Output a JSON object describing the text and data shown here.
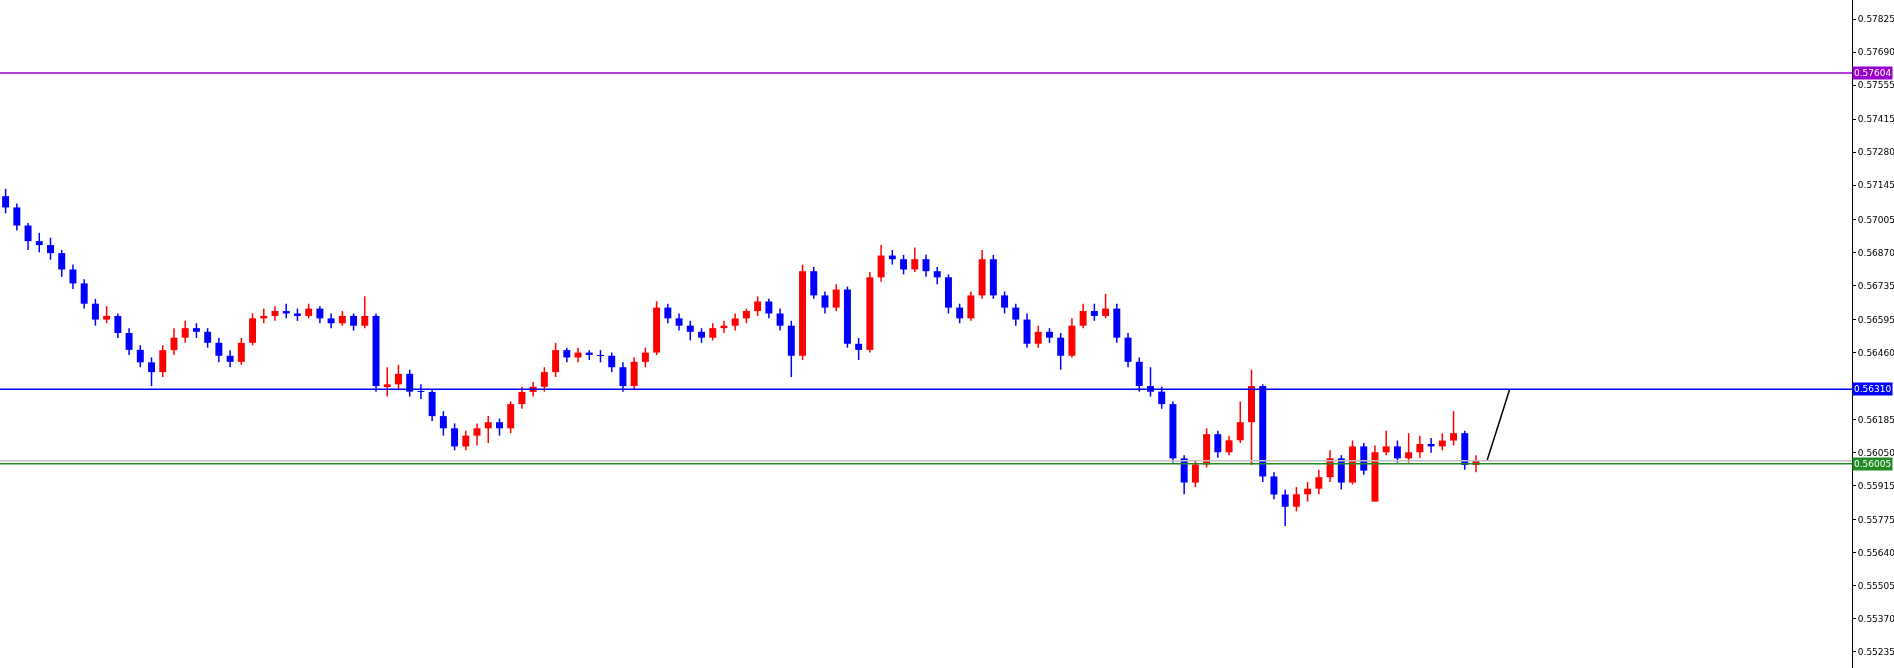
{
  "chart_data": {
    "type": "candlestick",
    "categories": [
      null,
      null,
      null,
      null,
      null,
      null,
      null,
      null,
      null,
      null,
      null,
      null,
      null,
      null,
      null,
      null,
      null,
      null,
      null,
      null,
      null,
      null,
      null,
      null,
      null,
      null,
      null,
      null,
      null,
      null,
      null,
      null,
      null,
      null,
      null,
      null,
      null,
      null,
      null,
      null,
      null,
      null,
      null,
      null,
      null,
      null,
      null,
      null,
      null,
      null,
      null,
      null,
      null,
      null,
      null,
      null,
      null,
      null,
      null,
      null,
      null,
      null,
      null,
      null,
      null,
      null,
      null,
      null,
      null,
      null,
      null,
      null,
      null,
      null,
      null,
      null,
      null,
      null,
      null,
      null,
      null,
      null,
      null,
      null,
      null,
      null,
      null,
      null,
      null,
      null,
      null,
      null,
      null,
      null,
      null,
      null,
      null,
      null,
      null,
      null,
      null,
      null,
      null,
      null,
      null,
      null,
      null,
      null,
      null,
      null,
      null,
      null,
      null,
      null,
      null,
      null,
      null,
      null,
      null,
      null,
      null,
      null,
      null,
      null,
      null,
      null,
      null,
      null,
      null,
      null,
      null,
      null,
      null,
      null,
      null,
      null,
      null,
      null,
      null,
      null,
      null,
      null,
      null,
      null,
      null,
      null,
      null,
      null,
      null,
      null,
      null,
      null,
      null,
      null,
      null,
      null,
      null,
      null,
      null,
      null,
      null,
      null,
      null,
      null,
      null
    ],
    "colors": [
      "#0000ff",
      "#0000ff",
      "#0000ff",
      "#0000ff",
      "#0000ff",
      "#0000ff",
      "#0000ff",
      "#0000ff",
      "#0000ff",
      "#ff0000",
      "#0000ff",
      "#0000ff",
      "#0000ff",
      "#0000ff",
      "#ff0000",
      "#ff0000",
      "#ff0000",
      "#0000ff",
      "#0000ff",
      "#0000ff",
      "#0000ff",
      "#ff0000",
      "#ff0000",
      "#ff0000",
      "#ff0000",
      "#0000ff",
      "#0000ff",
      "#ff0000",
      "#0000ff",
      "#0000ff",
      "#ff0000",
      "#0000ff",
      "#ff0000",
      "#0000ff",
      "#ff0000",
      "#ff0000",
      "#0000ff",
      "#0000ff",
      "#0000ff",
      "#0000ff",
      "#0000ff",
      "#ff0000",
      "#ff0000",
      "#ff0000",
      "#0000ff",
      "#ff0000",
      "#ff0000",
      "#ff0000",
      "#ff0000",
      "#ff0000",
      "#0000ff",
      "#ff0000",
      "#0000ff",
      "#0000ff",
      "#0000ff",
      "#0000ff",
      "#ff0000",
      "#ff0000",
      "#ff0000",
      "#0000ff",
      "#0000ff",
      "#0000ff",
      "#0000ff",
      "#ff0000",
      "#ff0000",
      "#ff0000",
      "#ff0000",
      "#ff0000",
      "#0000ff",
      "#0000ff",
      "#0000ff",
      "#ff0000",
      "#0000ff",
      "#0000ff",
      "#ff0000",
      "#0000ff",
      "#0000ff",
      "#ff0000",
      "#ff0000",
      "#0000ff",
      "#0000ff",
      "#ff0000",
      "#0000ff",
      "#0000ff",
      "#0000ff",
      "#0000ff",
      "#ff0000",
      "#ff0000",
      "#0000ff",
      "#0000ff",
      "#0000ff",
      "#0000ff",
      "#ff0000",
      "#0000ff",
      "#0000ff",
      "#ff0000",
      "#ff0000",
      "#0000ff",
      "#ff0000",
      "#0000ff",
      "#0000ff",
      "#0000ff",
      "#0000ff",
      "#0000ff",
      "#0000ff",
      "#0000ff",
      "#ff0000",
      "#ff0000",
      "#0000ff",
      "#ff0000",
      "#ff0000",
      "#ff0000",
      "#0000ff",
      "#0000ff",
      "#0000ff",
      "#ff0000",
      "#ff0000",
      "#ff0000",
      "#ff0000",
      "#0000ff",
      "#ff0000",
      "#0000ff",
      "#ff0000",
      "#ff0000",
      "#0000ff",
      "#ff0000",
      "#ff0000",
      "#0000ff",
      "#ff0000",
      "#ff0000",
      "#0000ff",
      "#ff0000",
      null,
      null,
      null,
      null,
      null,
      null,
      null,
      null,
      null,
      null,
      null,
      null,
      null,
      null,
      null,
      null,
      null,
      null,
      null,
      null,
      null,
      null,
      null,
      null,
      null,
      null,
      null,
      null,
      null,
      null,
      null,
      null,
      null
    ],
    "ohlc": [
      [
        0.571,
        0.5713,
        0.5703,
        0.57054
      ],
      [
        0.57054,
        0.5707,
        0.5696,
        0.5698
      ],
      [
        0.5698,
        0.5699,
        0.5688,
        0.56916
      ],
      [
        0.56916,
        0.5695,
        0.5687,
        0.569
      ],
      [
        0.569,
        0.5693,
        0.5684,
        0.56867
      ],
      [
        0.56867,
        0.5688,
        0.5677,
        0.568
      ],
      [
        0.568,
        0.5682,
        0.5672,
        0.56743
      ],
      [
        0.56743,
        0.5676,
        0.5664,
        0.5666
      ],
      [
        0.5666,
        0.5668,
        0.5657,
        0.56595
      ],
      [
        0.56595,
        0.5665,
        0.5658,
        0.5661
      ],
      [
        0.5661,
        0.5662,
        0.5652,
        0.5654
      ],
      [
        0.5654,
        0.5656,
        0.5645,
        0.56471
      ],
      [
        0.56471,
        0.5649,
        0.564,
        0.5642
      ],
      [
        0.5642,
        0.5644,
        0.56323,
        0.5638
      ],
      [
        0.5638,
        0.5649,
        0.5636,
        0.5647
      ],
      [
        0.5647,
        0.5656,
        0.5645,
        0.56521
      ],
      [
        0.56521,
        0.5659,
        0.565,
        0.5656
      ],
      [
        0.5656,
        0.5658,
        0.5652,
        0.56545
      ],
      [
        0.56545,
        0.5656,
        0.5648,
        0.565
      ],
      [
        0.565,
        0.5652,
        0.5642,
        0.56447
      ],
      [
        0.56447,
        0.5647,
        0.564,
        0.56422
      ],
      [
        0.56422,
        0.5652,
        0.5641,
        0.565
      ],
      [
        0.565,
        0.5662,
        0.5649,
        0.566
      ],
      [
        0.566,
        0.5664,
        0.5658,
        0.5661
      ],
      [
        0.5661,
        0.5665,
        0.5659,
        0.5663
      ],
      [
        0.5663,
        0.5666,
        0.566,
        0.5662
      ],
      [
        0.5662,
        0.5664,
        0.5659,
        0.5661
      ],
      [
        0.5661,
        0.5666,
        0.566,
        0.5664
      ],
      [
        0.5664,
        0.5665,
        0.5658,
        0.566
      ],
      [
        0.566,
        0.5662,
        0.5656,
        0.5658
      ],
      [
        0.5658,
        0.5663,
        0.5657,
        0.5661
      ],
      [
        0.5661,
        0.5662,
        0.5655,
        0.5657
      ],
      [
        0.5657,
        0.5669,
        0.5656,
        0.5661
      ],
      [
        0.5661,
        0.5662,
        0.563,
        0.56323
      ],
      [
        0.56323,
        0.564,
        0.5628,
        0.5633
      ],
      [
        0.5633,
        0.5641,
        0.5631,
        0.56373
      ],
      [
        0.56373,
        0.5639,
        0.5628,
        0.563
      ],
      [
        0.563,
        0.5633,
        0.5627,
        0.56299
      ],
      [
        0.56299,
        0.5631,
        0.5618,
        0.562
      ],
      [
        0.562,
        0.5622,
        0.5612,
        0.5615
      ],
      [
        0.5615,
        0.5617,
        0.5606,
        0.56076
      ],
      [
        0.56076,
        0.5614,
        0.5606,
        0.5612
      ],
      [
        0.5612,
        0.5617,
        0.5608,
        0.5615
      ],
      [
        0.5615,
        0.562,
        0.5609,
        0.56175
      ],
      [
        0.56175,
        0.5619,
        0.5612,
        0.5615
      ],
      [
        0.5615,
        0.5626,
        0.5613,
        0.56249
      ],
      [
        0.56249,
        0.5632,
        0.5623,
        0.56299
      ],
      [
        0.56299,
        0.5634,
        0.5628,
        0.5632
      ],
      [
        0.5632,
        0.564,
        0.563,
        0.5638
      ],
      [
        0.5638,
        0.565,
        0.5636,
        0.5647
      ],
      [
        0.5647,
        0.5648,
        0.5642,
        0.5644
      ],
      [
        0.5644,
        0.5648,
        0.5642,
        0.5646
      ],
      [
        0.5646,
        0.5647,
        0.5643,
        0.5645
      ],
      [
        0.5645,
        0.5647,
        0.5642,
        0.56447
      ],
      [
        0.56447,
        0.5646,
        0.5638,
        0.564
      ],
      [
        0.564,
        0.5642,
        0.563,
        0.56323
      ],
      [
        0.56323,
        0.5644,
        0.5631,
        0.56422
      ],
      [
        0.56422,
        0.5648,
        0.564,
        0.5646
      ],
      [
        0.5646,
        0.5667,
        0.5645,
        0.56644
      ],
      [
        0.56644,
        0.5666,
        0.5658,
        0.566
      ],
      [
        0.566,
        0.5662,
        0.5655,
        0.5657
      ],
      [
        0.5657,
        0.5659,
        0.5651,
        0.56545
      ],
      [
        0.56545,
        0.5656,
        0.565,
        0.56521
      ],
      [
        0.56521,
        0.5658,
        0.5651,
        0.5656
      ],
      [
        0.5656,
        0.5659,
        0.5654,
        0.5657
      ],
      [
        0.5657,
        0.5662,
        0.5655,
        0.566
      ],
      [
        0.566,
        0.5664,
        0.5658,
        0.5663
      ],
      [
        0.5663,
        0.5669,
        0.5661,
        0.56669
      ],
      [
        0.56669,
        0.5668,
        0.566,
        0.5662
      ],
      [
        0.5662,
        0.5664,
        0.5655,
        0.5657
      ],
      [
        0.5657,
        0.5659,
        0.5636,
        0.56447
      ],
      [
        0.56447,
        0.5682,
        0.5643,
        0.56793
      ],
      [
        0.56793,
        0.5681,
        0.5668,
        0.56694
      ],
      [
        0.56694,
        0.5671,
        0.5662,
        0.56644
      ],
      [
        0.56644,
        0.5674,
        0.5663,
        0.56718
      ],
      [
        0.56718,
        0.5673,
        0.5648,
        0.56496
      ],
      [
        0.56496,
        0.5652,
        0.5643,
        0.56471
      ],
      [
        0.56471,
        0.5679,
        0.5646,
        0.56768
      ],
      [
        0.56768,
        0.569,
        0.5675,
        0.56857
      ],
      [
        0.56857,
        0.5688,
        0.5682,
        0.56842
      ],
      [
        0.56842,
        0.5686,
        0.5678,
        0.568
      ],
      [
        0.568,
        0.5689,
        0.5679,
        0.56842
      ],
      [
        0.56842,
        0.5686,
        0.5677,
        0.56793
      ],
      [
        0.56793,
        0.5681,
        0.5674,
        0.56768
      ],
      [
        0.56768,
        0.5678,
        0.5662,
        0.56644
      ],
      [
        0.56644,
        0.5666,
        0.5658,
        0.566
      ],
      [
        0.566,
        0.5671,
        0.5659,
        0.56694
      ],
      [
        0.56694,
        0.5688,
        0.5668,
        0.56842
      ],
      [
        0.56842,
        0.5686,
        0.5668,
        0.56694
      ],
      [
        0.56694,
        0.5671,
        0.5662,
        0.56644
      ],
      [
        0.56644,
        0.5666,
        0.5657,
        0.56595
      ],
      [
        0.56595,
        0.5662,
        0.5648,
        0.56496
      ],
      [
        0.56496,
        0.5657,
        0.5648,
        0.56545
      ],
      [
        0.56545,
        0.5656,
        0.565,
        0.56521
      ],
      [
        0.56521,
        0.5654,
        0.5639,
        0.56447
      ],
      [
        0.56447,
        0.566,
        0.5644,
        0.5657
      ],
      [
        0.5657,
        0.5666,
        0.5656,
        0.5663
      ],
      [
        0.5663,
        0.5666,
        0.5659,
        0.5661
      ],
      [
        0.5661,
        0.567,
        0.566,
        0.5664
      ],
      [
        0.5664,
        0.5666,
        0.565,
        0.56521
      ],
      [
        0.56521,
        0.5654,
        0.564,
        0.56422
      ],
      [
        0.56422,
        0.5644,
        0.563,
        0.56323
      ],
      [
        0.56323,
        0.564,
        0.5628,
        0.563
      ],
      [
        0.563,
        0.5632,
        0.5623,
        0.56249
      ],
      [
        0.56249,
        0.5626,
        0.5601,
        0.56027
      ],
      [
        0.56027,
        0.5604,
        0.5588,
        0.55928
      ],
      [
        0.55928,
        0.5602,
        0.5591,
        0.56002
      ],
      [
        0.56002,
        0.5615,
        0.5599,
        0.56126
      ],
      [
        0.56126,
        0.5614,
        0.5603,
        0.56052
      ],
      [
        0.56052,
        0.5612,
        0.5604,
        0.56101
      ],
      [
        0.56101,
        0.5626,
        0.5609,
        0.56175
      ],
      [
        0.56175,
        0.5639,
        0.56,
        0.56323
      ],
      [
        0.56323,
        0.5633,
        0.5593,
        0.55953
      ],
      [
        0.55953,
        0.5597,
        0.5586,
        0.55879
      ],
      [
        0.55879,
        0.559,
        0.5575,
        0.55829
      ],
      [
        0.55829,
        0.5591,
        0.5581,
        0.5588
      ],
      [
        0.5588,
        0.5593,
        0.5585,
        0.55903
      ],
      [
        0.55903,
        0.5598,
        0.5588,
        0.5595
      ],
      [
        0.5595,
        0.5606,
        0.5593,
        0.56027
      ],
      [
        0.56027,
        0.5604,
        0.559,
        0.55928
      ],
      [
        0.55928,
        0.561,
        0.5592,
        0.56076
      ],
      [
        0.56076,
        0.5609,
        0.5596,
        0.55977
      ],
      [
        0.5585,
        0.5608,
        0.5585,
        0.56052
      ],
      [
        0.56052,
        0.5614,
        0.5604,
        0.56076
      ],
      [
        0.56076,
        0.561,
        0.5601,
        0.56027
      ],
      [
        0.56027,
        0.5613,
        0.5601,
        0.56052
      ],
      [
        0.56052,
        0.5612,
        0.5603,
        0.56086
      ],
      [
        0.56086,
        0.5611,
        0.5605,
        0.56076
      ],
      [
        0.56076,
        0.5613,
        0.5606,
        0.561
      ],
      [
        0.561,
        0.5622,
        0.5608,
        0.5613
      ],
      [
        0.5613,
        0.5614,
        0.5598,
        0.56
      ],
      [
        0.56,
        0.5604,
        0.5597,
        0.5602
      ],
      null,
      null,
      null,
      null,
      null,
      null,
      null,
      null,
      null,
      null,
      null,
      null,
      null,
      null,
      null,
      null,
      null,
      null,
      null,
      null,
      null,
      null,
      null,
      null,
      null,
      null,
      null,
      null,
      null,
      null,
      null,
      null,
      null
    ],
    "series": [
      {
        "type": "line",
        "color": "#000000",
        "values": [
          null,
          null,
          null,
          null,
          null,
          null,
          null,
          null,
          null,
          null,
          null,
          null,
          null,
          null,
          null,
          null,
          null,
          null,
          null,
          null,
          null,
          null,
          null,
          null,
          null,
          null,
          null,
          null,
          null,
          null,
          null,
          null,
          null,
          null,
          null,
          null,
          null,
          null,
          null,
          null,
          null,
          null,
          null,
          null,
          null,
          null,
          null,
          null,
          null,
          null,
          null,
          null,
          null,
          null,
          null,
          null,
          null,
          null,
          null,
          null,
          null,
          null,
          null,
          null,
          null,
          null,
          null,
          null,
          null,
          null,
          null,
          null,
          null,
          null,
          null,
          null,
          null,
          null,
          null,
          null,
          null,
          null,
          null,
          null,
          null,
          null,
          null,
          null,
          null,
          null,
          null,
          null,
          null,
          null,
          null,
          null,
          null,
          null,
          null,
          null,
          null,
          null,
          null,
          null,
          null,
          null,
          null,
          null,
          null,
          null,
          null,
          null,
          null,
          null,
          null,
          null,
          null,
          null,
          null,
          null,
          null,
          null,
          null,
          null,
          null,
          null,
          null,
          null,
          null,
          null,
          null,
          null,
          0.5602,
          0.56165,
          0.5631,
          null,
          null,
          null,
          null,
          null,
          null,
          null,
          null,
          null,
          null,
          null,
          null,
          null,
          null,
          null,
          null,
          null,
          null,
          null,
          null,
          null,
          null,
          null,
          null,
          null,
          null,
          null,
          null,
          null,
          null
        ]
      }
    ],
    "ylim": [
      0.55169,
      0.57903
    ],
    "yticks": [
      0.57825,
      {
        "value": 0.5769,
        "label": "0.57690"
      },
      0.57555,
      0.57415,
      {
        "value": 0.5728,
        "label": "0.57280"
      },
      0.57145,
      0.57005,
      {
        "value": 0.5687,
        "label": "0.56870"
      },
      0.56735,
      0.56595,
      {
        "value": 0.5646,
        "label": "0.56460"
      },
      0.56185,
      {
        "value": 0.5605,
        "label": "0.56050"
      },
      0.55915,
      0.55775,
      {
        "value": 0.5564,
        "label": "0.55640"
      },
      0.55505,
      {
        "value": 0.5537,
        "label": "0.55370"
      },
      0.55235
    ],
    "ref_lines": [
      {
        "axis": "y",
        "value": 0.57604,
        "label": "0.57604",
        "color": "#9900cc"
      },
      {
        "axis": "y",
        "value": 0.5631,
        "label": "0.56310",
        "color": "#0000ff"
      },
      {
        "axis": "y",
        "value": 0.56017,
        "color": "#c0c0c0"
      },
      {
        "axis": "y",
        "value": 0.56005,
        "label": "0.56005",
        "color": "#228b22"
      }
    ],
    "tick_labels": "y"
  }
}
